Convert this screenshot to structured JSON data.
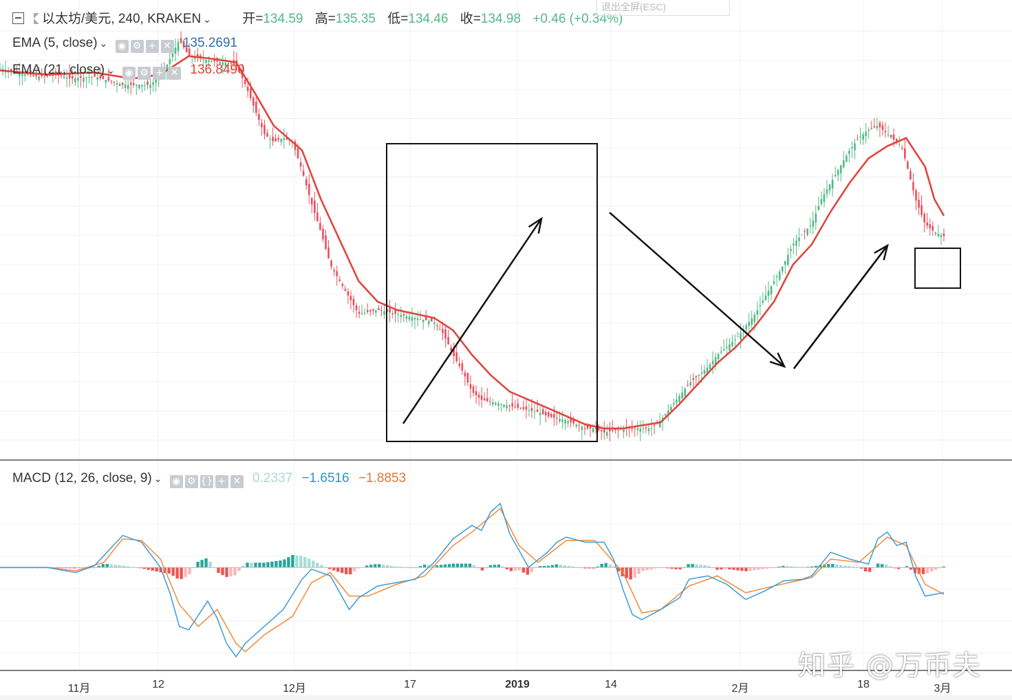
{
  "header": {
    "collapse_icon": "minus-square-icon",
    "flag_icon": "flag-icon",
    "symbol": "以太坊/美元, 240, KRAKEN",
    "open_label": "开=",
    "open": "134.59",
    "high_label": "高=",
    "high": "135.35",
    "low_label": "低=",
    "low": "134.46",
    "close_label": "收=",
    "close": "134.98",
    "change": "+0.46 (+0.34%)",
    "exit_fullscreen": "退出全屏(ESC)"
  },
  "indicators": {
    "ema5": {
      "label": "EMA (5, close)",
      "value": "135.2691"
    },
    "ema21": {
      "label": "EMA (21, close)",
      "value": "136.8490"
    },
    "macd": {
      "label": "MACD (12, 26, close, 9)",
      "hist": "0.2337",
      "macd": "−1.6516",
      "signal": "−1.8853"
    }
  },
  "colors": {
    "up": "#53b987",
    "down": "#eb4d5c",
    "ema": "#e0463c",
    "macd_line": "#3d9ad6",
    "signal_line": "#f08a38",
    "hist_pos": "#26a69a",
    "hist_neg": "#ef5350"
  },
  "watermark": "知乎 @万币夫",
  "chart_data": {
    "type": "line",
    "title": "",
    "x_ticks": [
      "11月",
      "12",
      "12月",
      "17",
      "2019",
      "14",
      "2月",
      "18",
      "3月"
    ],
    "price": [
      [
        0,
        0.9
      ],
      [
        0.04,
        0.88
      ],
      [
        0.06,
        0.885
      ],
      [
        0.075,
        0.875
      ],
      [
        0.1,
        0.88
      ],
      [
        0.13,
        0.86
      ],
      [
        0.16,
        0.86
      ],
      [
        0.175,
        0.9
      ],
      [
        0.19,
        0.97
      ],
      [
        0.2,
        0.93
      ],
      [
        0.22,
        0.92
      ],
      [
        0.25,
        0.91
      ],
      [
        0.26,
        0.86
      ],
      [
        0.27,
        0.8
      ],
      [
        0.28,
        0.74
      ],
      [
        0.29,
        0.72
      ],
      [
        0.3,
        0.73
      ],
      [
        0.31,
        0.72
      ],
      [
        0.32,
        0.65
      ],
      [
        0.33,
        0.57
      ],
      [
        0.34,
        0.5
      ],
      [
        0.35,
        0.42
      ],
      [
        0.36,
        0.38
      ],
      [
        0.37,
        0.34
      ],
      [
        0.38,
        0.3
      ],
      [
        0.4,
        0.31
      ],
      [
        0.42,
        0.3
      ],
      [
        0.44,
        0.29
      ],
      [
        0.46,
        0.28
      ],
      [
        0.47,
        0.25
      ],
      [
        0.48,
        0.2
      ],
      [
        0.49,
        0.16
      ],
      [
        0.5,
        0.11
      ],
      [
        0.51,
        0.09
      ],
      [
        0.53,
        0.08
      ],
      [
        0.55,
        0.07
      ],
      [
        0.57,
        0.06
      ],
      [
        0.58,
        0.05
      ],
      [
        0.6,
        0.04
      ],
      [
        0.61,
        0.03
      ],
      [
        0.62,
        0.02
      ],
      [
        0.63,
        0.02
      ],
      [
        0.64,
        0.01
      ],
      [
        0.66,
        0.02
      ],
      [
        0.69,
        0.02
      ],
      [
        0.7,
        0.04
      ],
      [
        0.71,
        0.07
      ],
      [
        0.72,
        0.1
      ],
      [
        0.73,
        0.13
      ],
      [
        0.75,
        0.17
      ],
      [
        0.76,
        0.2
      ],
      [
        0.77,
        0.22
      ],
      [
        0.78,
        0.24
      ],
      [
        0.79,
        0.27
      ],
      [
        0.8,
        0.3
      ],
      [
        0.81,
        0.34
      ],
      [
        0.82,
        0.38
      ],
      [
        0.83,
        0.42
      ],
      [
        0.84,
        0.47
      ],
      [
        0.86,
        0.52
      ],
      [
        0.87,
        0.58
      ],
      [
        0.88,
        0.62
      ],
      [
        0.89,
        0.66
      ],
      [
        0.9,
        0.7
      ],
      [
        0.91,
        0.73
      ],
      [
        0.92,
        0.75
      ],
      [
        0.93,
        0.76
      ],
      [
        0.94,
        0.74
      ],
      [
        0.95,
        0.72
      ],
      [
        0.955,
        0.71
      ],
      [
        0.96,
        0.67
      ],
      [
        0.97,
        0.58
      ],
      [
        0.98,
        0.52
      ],
      [
        0.99,
        0.5
      ],
      [
        1,
        0.49
      ]
    ],
    "ema21": [
      [
        0,
        0.895
      ],
      [
        0.05,
        0.885
      ],
      [
        0.1,
        0.89
      ],
      [
        0.14,
        0.875
      ],
      [
        0.17,
        0.885
      ],
      [
        0.2,
        0.93
      ],
      [
        0.22,
        0.925
      ],
      [
        0.25,
        0.915
      ],
      [
        0.27,
        0.84
      ],
      [
        0.29,
        0.76
      ],
      [
        0.3,
        0.74
      ],
      [
        0.32,
        0.7
      ],
      [
        0.34,
        0.58
      ],
      [
        0.36,
        0.48
      ],
      [
        0.38,
        0.38
      ],
      [
        0.4,
        0.33
      ],
      [
        0.42,
        0.31
      ],
      [
        0.44,
        0.3
      ],
      [
        0.46,
        0.29
      ],
      [
        0.48,
        0.26
      ],
      [
        0.5,
        0.2
      ],
      [
        0.52,
        0.15
      ],
      [
        0.54,
        0.11
      ],
      [
        0.56,
        0.09
      ],
      [
        0.58,
        0.07
      ],
      [
        0.6,
        0.05
      ],
      [
        0.62,
        0.03
      ],
      [
        0.64,
        0.02
      ],
      [
        0.66,
        0.02
      ],
      [
        0.7,
        0.035
      ],
      [
        0.72,
        0.08
      ],
      [
        0.74,
        0.13
      ],
      [
        0.76,
        0.18
      ],
      [
        0.78,
        0.22
      ],
      [
        0.8,
        0.27
      ],
      [
        0.82,
        0.33
      ],
      [
        0.84,
        0.42
      ],
      [
        0.86,
        0.47
      ],
      [
        0.88,
        0.55
      ],
      [
        0.9,
        0.62
      ],
      [
        0.92,
        0.68
      ],
      [
        0.94,
        0.71
      ],
      [
        0.96,
        0.73
      ],
      [
        0.98,
        0.66
      ],
      [
        0.99,
        0.58
      ],
      [
        1,
        0.54
      ]
    ],
    "macd": [
      [
        0,
        0.55
      ],
      [
        0.05,
        0.55
      ],
      [
        0.08,
        0.52
      ],
      [
        0.1,
        0.56
      ],
      [
        0.12,
        0.68
      ],
      [
        0.13,
        0.74
      ],
      [
        0.15,
        0.7
      ],
      [
        0.17,
        0.55
      ],
      [
        0.18,
        0.4
      ],
      [
        0.19,
        0.2
      ],
      [
        0.2,
        0.18
      ],
      [
        0.22,
        0.35
      ],
      [
        0.23,
        0.25
      ],
      [
        0.24,
        0.1
      ],
      [
        0.25,
        0.02
      ],
      [
        0.26,
        0.1
      ],
      [
        0.28,
        0.2
      ],
      [
        0.3,
        0.3
      ],
      [
        0.32,
        0.48
      ],
      [
        0.33,
        0.54
      ],
      [
        0.35,
        0.5
      ],
      [
        0.36,
        0.4
      ],
      [
        0.37,
        0.3
      ],
      [
        0.38,
        0.37
      ],
      [
        0.4,
        0.44
      ],
      [
        0.42,
        0.46
      ],
      [
        0.44,
        0.48
      ],
      [
        0.46,
        0.58
      ],
      [
        0.48,
        0.72
      ],
      [
        0.5,
        0.8
      ],
      [
        0.51,
        0.77
      ],
      [
        0.52,
        0.88
      ],
      [
        0.53,
        0.93
      ],
      [
        0.54,
        0.75
      ],
      [
        0.56,
        0.55
      ],
      [
        0.58,
        0.64
      ],
      [
        0.59,
        0.7
      ],
      [
        0.6,
        0.73
      ],
      [
        0.62,
        0.7
      ],
      [
        0.64,
        0.7
      ],
      [
        0.65,
        0.6
      ],
      [
        0.66,
        0.42
      ],
      [
        0.67,
        0.27
      ],
      [
        0.68,
        0.24
      ],
      [
        0.7,
        0.3
      ],
      [
        0.72,
        0.37
      ],
      [
        0.73,
        0.48
      ],
      [
        0.75,
        0.5
      ],
      [
        0.77,
        0.45
      ],
      [
        0.79,
        0.36
      ],
      [
        0.81,
        0.41
      ],
      [
        0.83,
        0.47
      ],
      [
        0.85,
        0.48
      ],
      [
        0.86,
        0.5
      ],
      [
        0.88,
        0.64
      ],
      [
        0.9,
        0.6
      ],
      [
        0.92,
        0.57
      ],
      [
        0.93,
        0.72
      ],
      [
        0.94,
        0.76
      ],
      [
        0.95,
        0.68
      ],
      [
        0.96,
        0.7
      ],
      [
        0.97,
        0.5
      ],
      [
        0.98,
        0.38
      ],
      [
        1,
        0.4
      ]
    ],
    "signal": [
      [
        0,
        0.55
      ],
      [
        0.05,
        0.55
      ],
      [
        0.08,
        0.53
      ],
      [
        0.11,
        0.58
      ],
      [
        0.13,
        0.72
      ],
      [
        0.15,
        0.71
      ],
      [
        0.17,
        0.6
      ],
      [
        0.19,
        0.33
      ],
      [
        0.21,
        0.2
      ],
      [
        0.23,
        0.3
      ],
      [
        0.25,
        0.1
      ],
      [
        0.26,
        0.05
      ],
      [
        0.28,
        0.15
      ],
      [
        0.31,
        0.26
      ],
      [
        0.33,
        0.46
      ],
      [
        0.35,
        0.52
      ],
      [
        0.37,
        0.38
      ],
      [
        0.39,
        0.38
      ],
      [
        0.42,
        0.45
      ],
      [
        0.45,
        0.5
      ],
      [
        0.48,
        0.68
      ],
      [
        0.5,
        0.76
      ],
      [
        0.53,
        0.9
      ],
      [
        0.55,
        0.68
      ],
      [
        0.57,
        0.58
      ],
      [
        0.6,
        0.71
      ],
      [
        0.63,
        0.71
      ],
      [
        0.66,
        0.52
      ],
      [
        0.68,
        0.28
      ],
      [
        0.7,
        0.3
      ],
      [
        0.73,
        0.44
      ],
      [
        0.76,
        0.5
      ],
      [
        0.79,
        0.4
      ],
      [
        0.82,
        0.44
      ],
      [
        0.86,
        0.49
      ],
      [
        0.88,
        0.6
      ],
      [
        0.91,
        0.58
      ],
      [
        0.94,
        0.73
      ],
      [
        0.96,
        0.68
      ],
      [
        0.98,
        0.45
      ],
      [
        1,
        0.39
      ]
    ],
    "annotations": [
      {
        "type": "rect",
        "label": ""
      },
      {
        "type": "arrow"
      },
      {
        "type": "arrow"
      },
      {
        "type": "arrow"
      },
      {
        "type": "rect"
      }
    ]
  }
}
